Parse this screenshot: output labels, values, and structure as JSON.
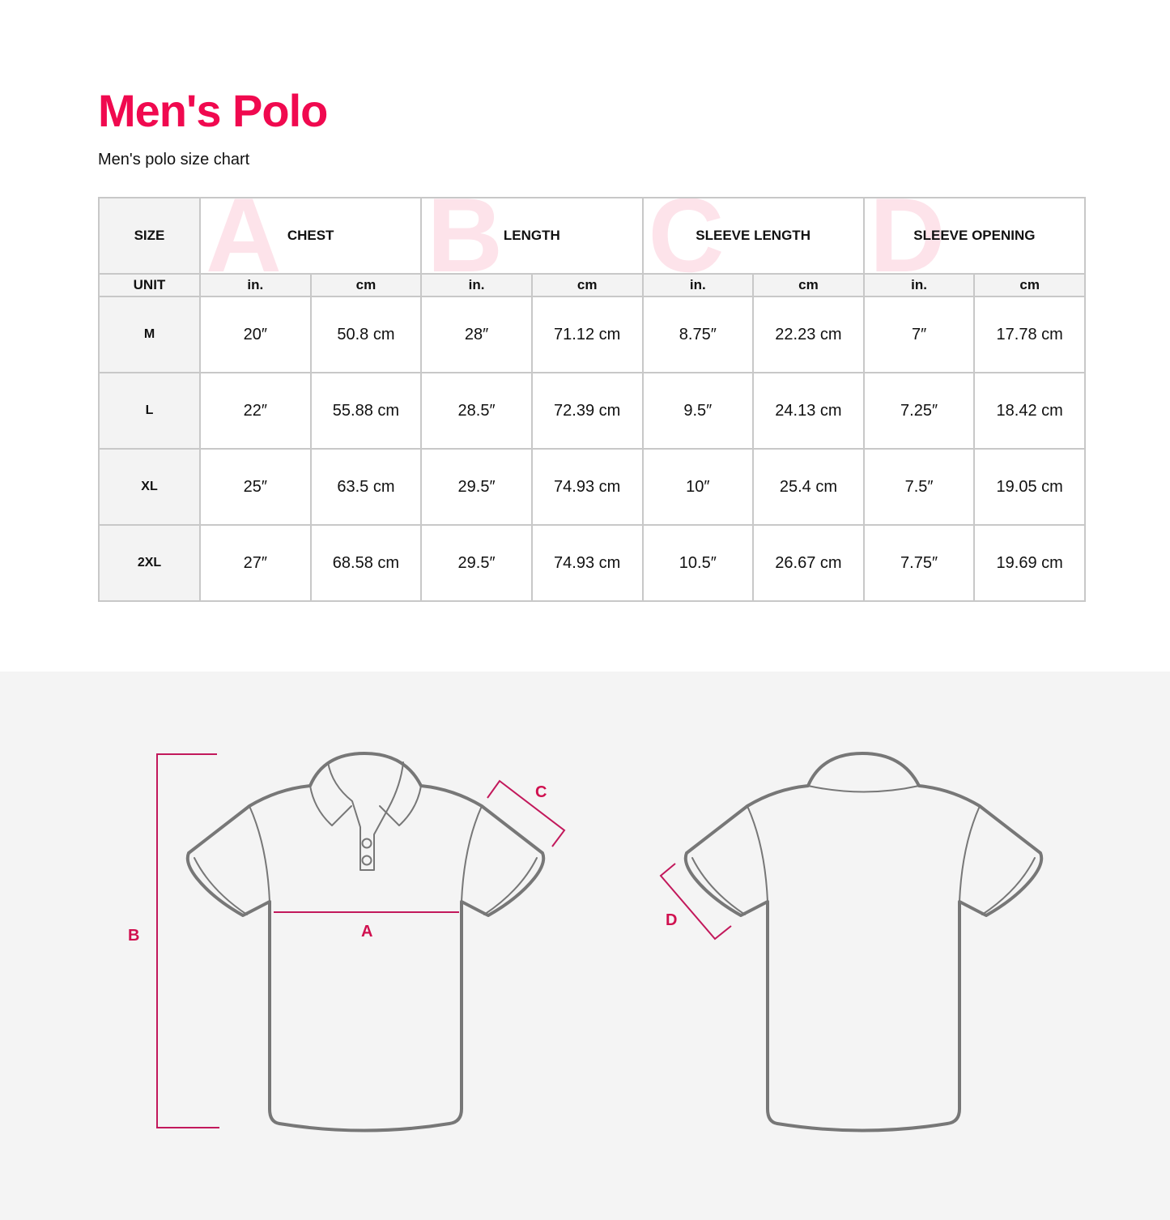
{
  "title": "Men's Polo",
  "subtitle": "Men's polo size chart",
  "table": {
    "size_header": "SIZE",
    "unit_header": "UNIT",
    "measurements": [
      {
        "letter": "A",
        "label": "CHEST"
      },
      {
        "letter": "B",
        "label": "LENGTH"
      },
      {
        "letter": "C",
        "label": "SLEEVE LENGTH"
      },
      {
        "letter": "D",
        "label": "SLEEVE OPENING"
      }
    ],
    "units": [
      "in.",
      "cm",
      "in.",
      "cm",
      "in.",
      "cm",
      "in.",
      "cm"
    ],
    "rows": [
      {
        "size": "M",
        "values": [
          "20″",
          "50.8 cm",
          "28″",
          "71.12 cm",
          "8.75″",
          "22.23 cm",
          "7″",
          "17.78 cm"
        ]
      },
      {
        "size": "L",
        "values": [
          "22″",
          "55.88 cm",
          "28.5″",
          "72.39 cm",
          "9.5″",
          "24.13 cm",
          "7.25″",
          "18.42 cm"
        ]
      },
      {
        "size": "XL",
        "values": [
          "25″",
          "63.5 cm",
          "29.5″",
          "74.93 cm",
          "10″",
          "25.4 cm",
          "7.5″",
          "19.05 cm"
        ]
      },
      {
        "size": "2XL",
        "values": [
          "27″",
          "68.58 cm",
          "29.5″",
          "74.93 cm",
          "10.5″",
          "26.67 cm",
          "7.75″",
          "19.69 cm"
        ]
      }
    ]
  },
  "diagram": {
    "label_a": "A",
    "label_b": "B",
    "label_c": "C",
    "label_d": "D"
  },
  "colors": {
    "accent": "#f0094f",
    "measure_line": "#c2185b",
    "outline": "#777777"
  }
}
